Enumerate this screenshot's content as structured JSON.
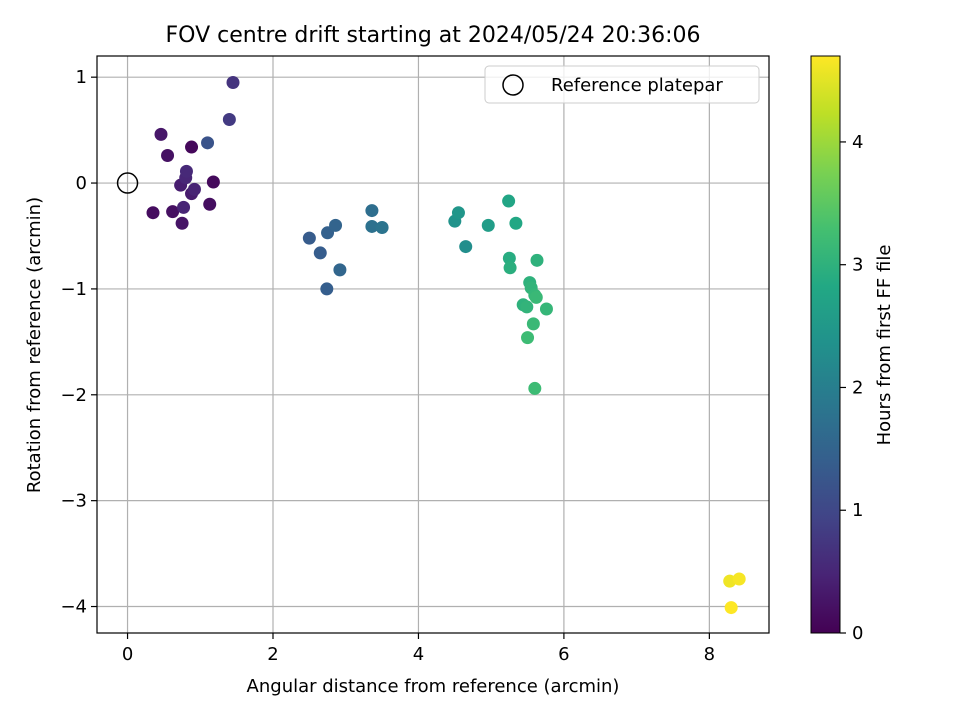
{
  "chart_data": {
    "type": "scatter",
    "title": "FOV centre drift starting at 2024/05/24 20:36:06",
    "xlabel": "Angular distance from reference (arcmin)",
    "ylabel": "Rotation from reference (arcmin)",
    "xlim": [
      -0.42,
      8.82
    ],
    "ylim": [
      -4.25,
      1.2
    ],
    "xticks": [
      0,
      2,
      4,
      6,
      8
    ],
    "yticks": [
      1,
      0,
      -1,
      -2,
      -3,
      -4
    ],
    "x_tick_labels": [
      "0",
      "2",
      "4",
      "6",
      "8"
    ],
    "y_tick_labels": [
      "1",
      "0",
      "−1",
      "−2",
      "−3",
      "−4"
    ],
    "grid": true,
    "colormap": "viridis",
    "colorbar": {
      "label": "Hours from first FF file",
      "range": [
        0,
        4.7
      ],
      "ticks": [
        0,
        1,
        2,
        3,
        4
      ],
      "tick_labels": [
        "0",
        "1",
        "2",
        "3",
        "4"
      ]
    },
    "legend": {
      "placement": "top-right",
      "entries": [
        {
          "label": "Reference platepar",
          "marker": "open-circle"
        }
      ]
    },
    "reference_point": {
      "x": 0,
      "y": 0
    },
    "points": [
      {
        "x": 0.88,
        "y": 0.34,
        "hours": 0.1
      },
      {
        "x": 1.18,
        "y": 0.01,
        "hours": 0.12
      },
      {
        "x": 0.35,
        "y": -0.28,
        "hours": 0.15
      },
      {
        "x": 1.13,
        "y": -0.2,
        "hours": 0.17
      },
      {
        "x": 0.62,
        "y": -0.27,
        "hours": 0.2
      },
      {
        "x": 0.55,
        "y": 0.26,
        "hours": 0.22
      },
      {
        "x": 0.75,
        "y": -0.38,
        "hours": 0.25
      },
      {
        "x": 0.46,
        "y": 0.46,
        "hours": 0.3
      },
      {
        "x": 0.88,
        "y": -0.1,
        "hours": 0.35
      },
      {
        "x": 0.73,
        "y": -0.02,
        "hours": 0.38
      },
      {
        "x": 0.92,
        "y": -0.06,
        "hours": 0.45
      },
      {
        "x": 0.77,
        "y": -0.23,
        "hours": 0.48
      },
      {
        "x": 0.8,
        "y": 0.05,
        "hours": 0.5
      },
      {
        "x": 0.81,
        "y": 0.11,
        "hours": 0.55
      },
      {
        "x": 1.45,
        "y": 0.95,
        "hours": 0.7
      },
      {
        "x": 1.4,
        "y": 0.6,
        "hours": 0.8
      },
      {
        "x": 1.1,
        "y": 0.38,
        "hours": 1.2
      },
      {
        "x": 2.5,
        "y": -0.52,
        "hours": 1.35
      },
      {
        "x": 2.65,
        "y": -0.66,
        "hours": 1.38
      },
      {
        "x": 2.74,
        "y": -1.0,
        "hours": 1.4
      },
      {
        "x": 2.75,
        "y": -0.47,
        "hours": 1.45
      },
      {
        "x": 2.86,
        "y": -0.4,
        "hours": 1.5
      },
      {
        "x": 2.92,
        "y": -0.82,
        "hours": 1.55
      },
      {
        "x": 3.36,
        "y": -0.26,
        "hours": 1.7
      },
      {
        "x": 3.36,
        "y": -0.41,
        "hours": 1.75
      },
      {
        "x": 3.5,
        "y": -0.42,
        "hours": 1.8
      },
      {
        "x": 4.65,
        "y": -0.6,
        "hours": 2.3
      },
      {
        "x": 4.5,
        "y": -0.36,
        "hours": 2.4
      },
      {
        "x": 4.55,
        "y": -0.28,
        "hours": 2.45
      },
      {
        "x": 4.96,
        "y": -0.4,
        "hours": 2.6
      },
      {
        "x": 5.24,
        "y": -0.17,
        "hours": 2.75
      },
      {
        "x": 5.34,
        "y": -0.38,
        "hours": 2.8
      },
      {
        "x": 5.25,
        "y": -0.71,
        "hours": 2.9
      },
      {
        "x": 5.26,
        "y": -0.8,
        "hours": 2.95
      },
      {
        "x": 5.63,
        "y": -0.73,
        "hours": 3.0
      },
      {
        "x": 5.53,
        "y": -0.94,
        "hours": 3.0
      },
      {
        "x": 5.55,
        "y": -0.99,
        "hours": 3.05
      },
      {
        "x": 5.6,
        "y": -1.06,
        "hours": 3.1
      },
      {
        "x": 5.62,
        "y": -1.08,
        "hours": 3.15
      },
      {
        "x": 5.44,
        "y": -1.15,
        "hours": 3.0
      },
      {
        "x": 5.49,
        "y": -1.17,
        "hours": 3.05
      },
      {
        "x": 5.76,
        "y": -1.19,
        "hours": 3.1
      },
      {
        "x": 5.58,
        "y": -1.33,
        "hours": 3.15
      },
      {
        "x": 5.5,
        "y": -1.46,
        "hours": 3.2
      },
      {
        "x": 5.6,
        "y": -1.94,
        "hours": 3.2
      },
      {
        "x": 8.28,
        "y": -3.76,
        "hours": 4.6
      },
      {
        "x": 8.41,
        "y": -3.74,
        "hours": 4.65
      },
      {
        "x": 8.3,
        "y": -4.01,
        "hours": 4.7
      }
    ]
  }
}
